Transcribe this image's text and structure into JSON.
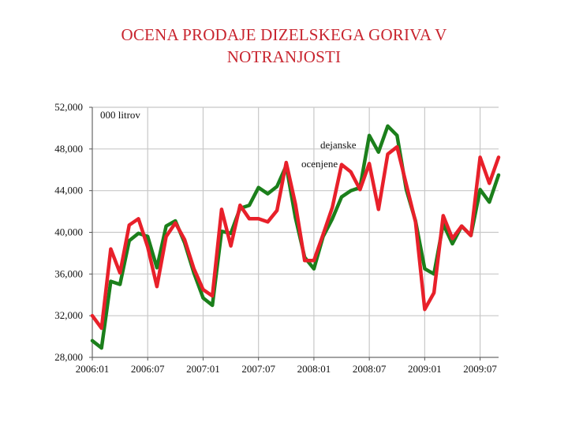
{
  "title_lines": [
    "OCENA PRODAJE DIZELSKEGA GORIVA V",
    "NOTRANJOSTI"
  ],
  "chart_data": {
    "type": "line",
    "title": "OCENA PRODAJE DIZELSKEGA GORIVA V NOTRANJOSTI",
    "unit_label": "000 litrov",
    "ylim": [
      28000,
      52000
    ],
    "y_ticks": [
      28000,
      32000,
      36000,
      40000,
      44000,
      48000,
      52000
    ],
    "y_tick_labels": [
      "28,000",
      "32,000",
      "36,000",
      "40,000",
      "44,000",
      "48,000",
      "52,000"
    ],
    "x_tick_labels": [
      "2006:01",
      "2006:07",
      "2007:01",
      "2007:07",
      "2008:01",
      "2008:07",
      "2009:01",
      "2009:07"
    ],
    "x_tick_indices": [
      0,
      6,
      12,
      18,
      24,
      30,
      36,
      42
    ],
    "grid": true,
    "x_periods": [
      "2006:01",
      "2006:02",
      "2006:03",
      "2006:04",
      "2006:05",
      "2006:06",
      "2006:07",
      "2006:08",
      "2006:09",
      "2006:10",
      "2006:11",
      "2006:12",
      "2007:01",
      "2007:02",
      "2007:03",
      "2007:04",
      "2007:05",
      "2007:06",
      "2007:07",
      "2007:08",
      "2007:09",
      "2007:10",
      "2007:11",
      "2007:12",
      "2008:01",
      "2008:02",
      "2008:03",
      "2008:04",
      "2008:05",
      "2008:06",
      "2008:07",
      "2008:08",
      "2008:09",
      "2008:10",
      "2008:11",
      "2008:12",
      "2009:01",
      "2009:02",
      "2009:03",
      "2009:04",
      "2009:05",
      "2009:06",
      "2009:07",
      "2009:08",
      "2009:09"
    ],
    "series": [
      {
        "name": "dejanske",
        "color": "#1b7f1b",
        "values": [
          29600,
          28900,
          35300,
          35000,
          39200,
          39900,
          39600,
          36600,
          40600,
          41100,
          39000,
          36100,
          33700,
          33000,
          40100,
          39900,
          42300,
          42600,
          44300,
          43700,
          44400,
          46400,
          41400,
          37600,
          36500,
          39600,
          41300,
          43400,
          44000,
          44300,
          49300,
          47700,
          50200,
          49300,
          44100,
          41100,
          36500,
          36000,
          40800,
          38900,
          40600,
          39700,
          44100,
          42900,
          45500
        ]
      },
      {
        "name": "ocenjene",
        "color": "#e8202a",
        "values": [
          32000,
          30800,
          38400,
          36100,
          40700,
          41300,
          38600,
          34800,
          39600,
          40900,
          39300,
          36500,
          34500,
          33900,
          42200,
          38700,
          42600,
          41300,
          41300,
          41000,
          42100,
          46700,
          42700,
          37300,
          37300,
          39800,
          42400,
          46500,
          45800,
          44100,
          46600,
          42200,
          47500,
          48200,
          44600,
          41000,
          32600,
          34200,
          41600,
          39400,
          40600,
          39700,
          47200,
          44700,
          47200
        ]
      }
    ]
  }
}
